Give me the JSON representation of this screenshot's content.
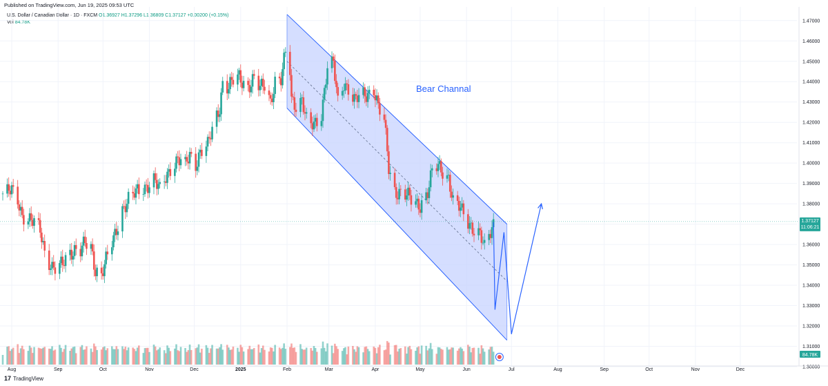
{
  "header": {
    "published": "Published on TradingView.com, Jun 19, 2025 09:53 UTC",
    "symbol": "U.S. Dollar / Canadian Dollar · 1D · FXCM",
    "ohlc": "O1.36927 H1.37296 L1.36809 C1.37127 +0.00200 (+0.15%)",
    "vol_label": "Vol",
    "vol_value": "84.78K"
  },
  "footer": {
    "brand": "TradingView",
    "brand_mark": "17"
  },
  "colors": {
    "up": "#26a69a",
    "down": "#ef5350",
    "channel": "#2962ff",
    "channel_fill": "#c7d3ff"
  },
  "chart_data": {
    "type": "candlestick",
    "title": "U.S. Dollar / Canadian Dollar · 1D · FXCM",
    "x_tick_labels": [
      "Aug",
      "Sep",
      "Oct",
      "Nov",
      "Dec",
      "2025",
      "Feb",
      "Mar",
      "Apr",
      "May",
      "Jun",
      "Jul",
      "Aug",
      "Sep",
      "Oct",
      "Nov",
      "Dec"
    ],
    "y_tick_labels": [
      "1.47000",
      "1.46000",
      "1.45000",
      "1.44000",
      "1.43000",
      "1.42000",
      "1.41000",
      "1.40000",
      "1.39000",
      "1.38000",
      "1.37000",
      "1.36000",
      "1.35000",
      "1.34000",
      "1.33000",
      "1.32000",
      "1.31000",
      "1.30000"
    ],
    "ylim": [
      1.3,
      1.474
    ],
    "last_price": "1.37127",
    "countdown": "11:06:21",
    "volume_last": "84.78K",
    "price_path": [
      [
        "2024-07-26",
        1.385
      ],
      [
        "2024-08-01",
        1.386
      ],
      [
        "2024-08-05",
        1.382
      ],
      [
        "2024-08-08",
        1.375
      ],
      [
        "2024-08-13",
        1.372
      ],
      [
        "2024-08-16",
        1.37
      ],
      [
        "2024-08-20",
        1.367
      ],
      [
        "2024-08-23",
        1.357
      ],
      [
        "2024-08-28",
        1.349
      ],
      [
        "2024-08-31",
        1.347
      ],
      [
        "2024-09-04",
        1.35
      ],
      [
        "2024-09-08",
        1.356
      ],
      [
        "2024-09-12",
        1.358
      ],
      [
        "2024-09-16",
        1.357
      ],
      [
        "2024-09-19",
        1.36
      ],
      [
        "2024-09-23",
        1.358
      ],
      [
        "2024-09-26",
        1.348
      ],
      [
        "2024-09-30",
        1.346
      ],
      [
        "2024-10-04",
        1.354
      ],
      [
        "2024-10-08",
        1.362
      ],
      [
        "2024-10-14",
        1.378
      ],
      [
        "2024-10-18",
        1.382
      ],
      [
        "2024-10-23",
        1.385
      ],
      [
        "2024-10-28",
        1.388
      ],
      [
        "2024-11-04",
        1.392
      ],
      [
        "2024-11-08",
        1.386
      ],
      [
        "2024-11-12",
        1.393
      ],
      [
        "2024-11-15",
        1.398
      ],
      [
        "2024-11-20",
        1.402
      ],
      [
        "2024-11-25",
        1.398
      ],
      [
        "2024-11-28",
        1.404
      ],
      [
        "2024-12-02",
        1.4
      ],
      [
        "2024-12-05",
        1.406
      ],
      [
        "2024-12-10",
        1.408
      ],
      [
        "2024-12-13",
        1.416
      ],
      [
        "2024-12-18",
        1.428
      ],
      [
        "2024-12-20",
        1.44
      ],
      [
        "2024-12-24",
        1.437
      ],
      [
        "2024-12-27",
        1.44
      ],
      [
        "2024-12-31",
        1.442
      ],
      [
        "2025-01-06",
        1.438
      ],
      [
        "2025-01-10",
        1.441
      ],
      [
        "2025-01-14",
        1.436
      ],
      [
        "2025-01-17",
        1.439
      ],
      [
        "2025-01-21",
        1.431
      ],
      [
        "2025-01-24",
        1.44
      ],
      [
        "2025-01-28",
        1.44
      ],
      [
        "2025-01-31",
        1.454
      ],
      [
        "2025-02-02",
        1.46
      ],
      [
        "2025-02-04",
        1.432
      ],
      [
        "2025-02-07",
        1.429
      ],
      [
        "2025-02-11",
        1.431
      ],
      [
        "2025-02-14",
        1.42
      ],
      [
        "2025-02-17",
        1.418
      ],
      [
        "2025-02-20",
        1.42
      ],
      [
        "2025-02-24",
        1.425
      ],
      [
        "2025-02-28",
        1.447
      ],
      [
        "2025-03-04",
        1.448
      ],
      [
        "2025-03-07",
        1.43
      ],
      [
        "2025-03-11",
        1.44
      ],
      [
        "2025-03-14",
        1.437
      ],
      [
        "2025-03-18",
        1.43
      ],
      [
        "2025-03-21",
        1.432
      ],
      [
        "2025-03-26",
        1.434
      ],
      [
        "2025-03-31",
        1.437
      ],
      [
        "2025-04-03",
        1.427
      ],
      [
        "2025-04-07",
        1.42
      ],
      [
        "2025-04-10",
        1.398
      ],
      [
        "2025-04-14",
        1.387
      ],
      [
        "2025-04-18",
        1.385
      ],
      [
        "2025-04-23",
        1.383
      ],
      [
        "2025-04-28",
        1.381
      ],
      [
        "2025-05-01",
        1.38
      ],
      [
        "2025-05-06",
        1.385
      ],
      [
        "2025-05-09",
        1.395
      ],
      [
        "2025-05-13",
        1.399
      ],
      [
        "2025-05-16",
        1.397
      ],
      [
        "2025-05-20",
        1.393
      ],
      [
        "2025-05-23",
        1.38
      ],
      [
        "2025-05-27",
        1.378
      ],
      [
        "2025-05-30",
        1.376
      ],
      [
        "2025-06-03",
        1.371
      ],
      [
        "2025-06-06",
        1.367
      ],
      [
        "2025-06-10",
        1.364
      ],
      [
        "2025-06-12",
        1.36
      ],
      [
        "2025-06-13",
        1.358
      ],
      [
        "2025-06-16",
        1.365
      ],
      [
        "2025-06-19",
        1.37127
      ]
    ],
    "annotations": {
      "label": "Bear Channal",
      "channel_upper": [
        [
          "2025-02-01",
          1.473
        ],
        [
          "2025-06-28",
          1.37
        ]
      ],
      "channel_lower": [
        [
          "2025-02-01",
          1.427
        ],
        [
          "2025-06-28",
          1.313
        ]
      ],
      "channel_mid": [
        [
          "2025-02-01",
          1.45
        ],
        [
          "2025-06-28",
          1.342
        ]
      ],
      "projection_1": [
        [
          "2025-06-19",
          1.371
        ],
        [
          "2025-06-20",
          1.328
        ],
        [
          "2025-06-26",
          1.366
        ],
        [
          "2025-07-01",
          1.316
        ],
        [
          "2025-07-21",
          1.38
        ]
      ]
    }
  }
}
